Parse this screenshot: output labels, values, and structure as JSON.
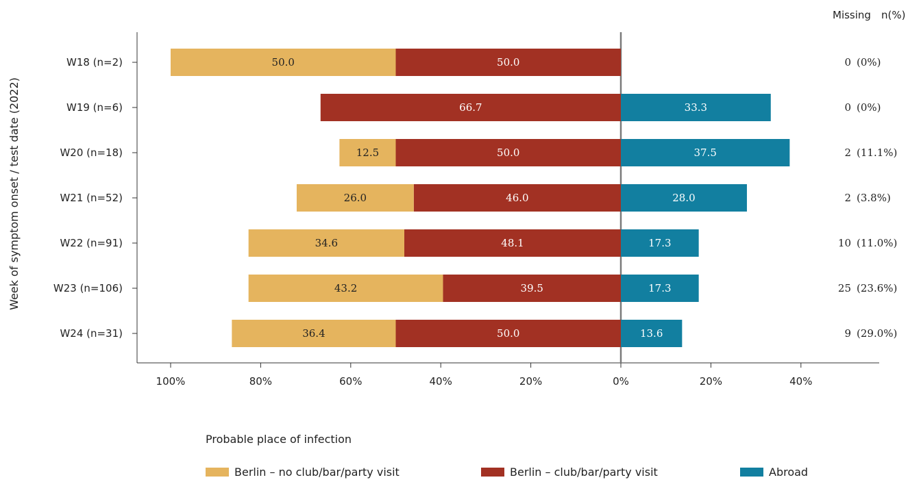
{
  "chart_data": {
    "type": "bar",
    "orientation": "horizontal-diverging",
    "ylabel": "Week of symptom onset / test date (2022)",
    "categories": [
      "W18 (n=2)",
      "W19 (n=6)",
      "W20 (n=18)",
      "W21 (n=52)",
      "W22 (n=91)",
      "W23 (n=106)",
      "W24 (n=31)"
    ],
    "series": [
      {
        "name": "Berlin – no club/bar/party visit",
        "color": "#e5b45e",
        "side": "left",
        "values": [
          50.0,
          null,
          12.5,
          26.0,
          34.6,
          43.2,
          36.4
        ]
      },
      {
        "name": "Berlin – club/bar/party visit",
        "color": "#a23123",
        "side": "left",
        "values": [
          50.0,
          66.7,
          50.0,
          46.0,
          48.1,
          39.5,
          50.0
        ]
      },
      {
        "name": "Abroad",
        "color": "#127fa0",
        "side": "right",
        "values": [
          null,
          33.3,
          37.5,
          28.0,
          17.3,
          17.3,
          13.6
        ]
      }
    ],
    "xticks": [
      "100%",
      "80%",
      "60%",
      "40%",
      "20%",
      "0%",
      "20%",
      "40%"
    ],
    "xlim": [
      -100,
      40
    ],
    "missing_header": "Missing",
    "missing_unit_header": "n(%)",
    "missing": [
      {
        "count": "0",
        "pct": "(0%)"
      },
      {
        "count": "0",
        "pct": "(0%)"
      },
      {
        "count": "2",
        "pct": "(11.1%)"
      },
      {
        "count": "2",
        "pct": "(3.8%)"
      },
      {
        "count": "10",
        "pct": "(11.0%)"
      },
      {
        "count": "25",
        "pct": "(23.6%)"
      },
      {
        "count": "9",
        "pct": "(29.0%)"
      }
    ],
    "legend_title": "Probable place of infection",
    "legend_position": "bottom",
    "grid": false
  }
}
